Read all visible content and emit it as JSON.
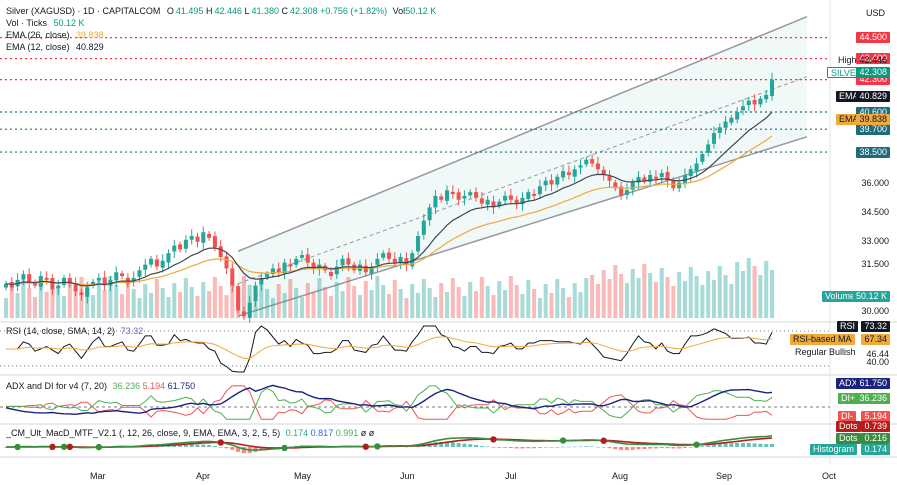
{
  "header": {
    "symbol": "Silver (XAGUSD) · 1D · CAPITALCOM",
    "o_label": "O",
    "o": "41.495",
    "h_label": "H",
    "h": "42.446",
    "l_label": "L",
    "l": "41.380",
    "c_label": "C",
    "c": "42.308",
    "change": "+0.756 (+1.82%)",
    "vol_label": "Vol",
    "vol": "50.12 K",
    "currency": "USD"
  },
  "indicators": {
    "vol_ticks": "Vol · Ticks",
    "vol_ticks_value": "50.12 K",
    "ema26": "EMA (26, close)",
    "ema26_value": "39.838",
    "ema12": "EMA (12, close)",
    "ema12_value": "40.829"
  },
  "price_axis": {
    "ticks": [
      "36.000",
      "34.500",
      "33.000",
      "31.500",
      "30.000"
    ],
    "levels": [
      {
        "text": "44.500",
        "color": "#f23645"
      },
      {
        "text": "43.400",
        "color": "#f23645"
      },
      {
        "text": "42.300",
        "color": "#f23645"
      },
      {
        "text": "40.600",
        "color": "#1e6b7a"
      },
      {
        "text": "39.700",
        "color": "#1e6b7a"
      },
      {
        "text": "38.500",
        "color": "#1e6b7a"
      }
    ],
    "high_name": "High",
    "high_value": "42.446",
    "silver_name": "SILVER",
    "silver_value": "42.308",
    "ema_name": "EMA",
    "ema_value": "40.829",
    "ema2_name": "EMA",
    "ema2_value": "39.838",
    "volume_name": "Volume",
    "volume_value": "50.12 K"
  },
  "rsi": {
    "title": "RSI (14, close, SMA, 14, 2)",
    "value": "73.32",
    "label": "RSI",
    "label_value": "73.32",
    "ma_label": "RSI-based MA",
    "ma_value": "67.34",
    "bullish": "Regular Bullish",
    "ticks": [
      "46.44",
      "40.00"
    ]
  },
  "adx": {
    "title": "ADX and DI for v4 (7, 20)",
    "v1": "36.236",
    "v2": "5.194",
    "v3": "61.750",
    "adx_label": "ADX",
    "adx_value": "61.750",
    "diplus_label": "DI+",
    "diplus_value": "36.236",
    "diminus_label": "DI-",
    "diminus_value": "5.194"
  },
  "macd": {
    "title": "_CM_Ult_MacD_MTF_V2.1 (, 12, 26, close, 9, EMA, EMA, 3, 2, 5, 5)",
    "v1": "0.174",
    "v2": "0.817",
    "v3": "0.991",
    "v4": "ø",
    "v5": "ø",
    "dots_label": "Dots",
    "dots_value": "0.739",
    "dots2_label": "Dots",
    "dots2_value": "0.216",
    "hist_label": "Histogram",
    "hist_value": "0.174"
  },
  "time_axis": [
    "Mar",
    "Apr",
    "May",
    "Jun",
    "Jul",
    "Aug",
    "Sep",
    "Oct"
  ],
  "colors": {
    "up": "#26a69a",
    "down": "#ef5350",
    "ema_fast": "#434651",
    "ema_slow": "#f0a93b",
    "resistance": "#f23645",
    "support": "#1e6b7a",
    "adx": "#1a237e",
    "di_plus": "#4caf50",
    "di_minus": "#ef5350"
  },
  "chart_data": {
    "type": "candlestick",
    "price_range": [
      29.8,
      44.9
    ],
    "trend_channel": {
      "start": "Apr",
      "end": "Sep"
    },
    "closes": [
      31.6,
      31.4,
      31.8,
      32.1,
      31.7,
      31.5,
      32.0,
      31.8,
      31.3,
      31.5,
      31.9,
      31.6,
      31.2,
      31.0,
      31.4,
      31.7,
      31.9,
      31.5,
      31.8,
      32.2,
      32.0,
      31.6,
      31.9,
      32.3,
      32.6,
      32.9,
      32.5,
      32.8,
      33.2,
      33.6,
      33.4,
      33.9,
      34.1,
      33.8,
      34.3,
      34.0,
      33.5,
      33.0,
      32.4,
      31.5,
      30.2,
      29.9,
      30.6,
      31.5,
      31.9,
      32.1,
      32.4,
      32.2,
      32.7,
      32.5,
      32.9,
      33.1,
      32.7,
      32.4,
      32.6,
      32.3,
      32.0,
      32.5,
      32.9,
      32.6,
      32.3,
      32.6,
      32.2,
      32.5,
      32.9,
      33.2,
      32.9,
      32.7,
      33.0,
      32.6,
      33.2,
      34.1,
      34.9,
      35.6,
      36.2,
      36.0,
      36.5,
      36.3,
      36.0,
      36.2,
      36.4,
      36.1,
      35.8,
      36.0,
      35.6,
      35.9,
      36.2,
      36.0,
      35.8,
      36.1,
      36.4,
      36.2,
      36.7,
      37.0,
      36.8,
      37.2,
      37.5,
      37.3,
      37.6,
      37.8,
      38.1,
      37.9,
      37.6,
      37.3,
      37.0,
      36.6,
      36.2,
      36.5,
      36.9,
      37.2,
      37.0,
      37.3,
      37.1,
      37.4,
      37.0,
      36.6,
      36.9,
      37.3,
      37.6,
      37.9,
      38.4,
      38.9,
      39.5,
      39.8,
      40.1,
      40.3,
      40.6,
      40.9,
      41.2,
      41.0,
      41.3,
      41.5,
      42.3
    ]
  }
}
